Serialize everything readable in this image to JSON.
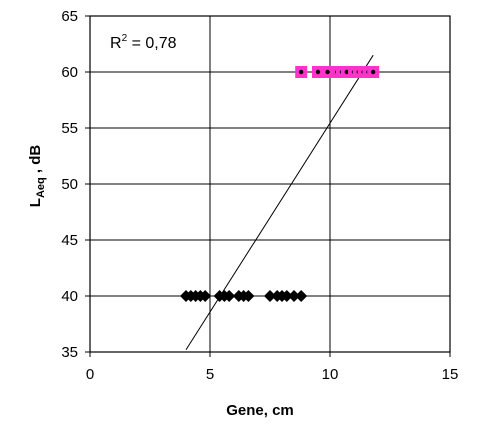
{
  "chart_data": {
    "type": "scatter",
    "title": "",
    "xlabel": "Gene, cm",
    "ylabel_main": "L",
    "ylabel_sub": "Aeq",
    "ylabel_suffix": " , dB",
    "xlim": [
      0,
      15
    ],
    "ylim": [
      35,
      65
    ],
    "x_ticks": [
      0,
      5,
      10,
      15
    ],
    "y_ticks": [
      35,
      40,
      45,
      50,
      55,
      60,
      65
    ],
    "x_tick_labels": [
      "0",
      "5",
      "10",
      "15"
    ],
    "y_tick_labels": [
      "35",
      "40",
      "45",
      "50",
      "55",
      "60",
      "65"
    ],
    "grid": true,
    "annotation": {
      "prefix": "R",
      "sup": "2",
      "suffix": " = 0,78"
    },
    "series": [
      {
        "marker": "diamond",
        "color": "#000000",
        "points": [
          [
            4.0,
            40
          ],
          [
            4.2,
            40
          ],
          [
            4.4,
            40
          ],
          [
            4.6,
            40
          ],
          [
            4.8,
            40
          ],
          [
            5.4,
            40
          ],
          [
            5.6,
            40
          ],
          [
            5.8,
            40
          ],
          [
            6.2,
            40
          ],
          [
            6.4,
            40
          ],
          [
            6.6,
            40
          ],
          [
            7.5,
            40
          ],
          [
            7.8,
            40
          ],
          [
            8.0,
            40
          ],
          [
            8.2,
            40
          ],
          [
            8.5,
            40
          ],
          [
            8.8,
            40
          ]
        ]
      },
      {
        "marker": "square",
        "color": "#ff33cc",
        "points": [
          [
            8.8,
            60
          ],
          [
            9.5,
            60
          ],
          [
            9.9,
            60
          ],
          [
            10.3,
            60
          ],
          [
            10.5,
            60
          ],
          [
            10.7,
            60
          ],
          [
            11.0,
            60
          ],
          [
            11.2,
            60
          ],
          [
            11.4,
            60
          ],
          [
            11.6,
            60
          ],
          [
            11.8,
            60
          ]
        ]
      }
    ],
    "trendline": {
      "x1": 4.0,
      "y1": 35.2,
      "x2": 11.8,
      "y2": 61.5
    }
  }
}
